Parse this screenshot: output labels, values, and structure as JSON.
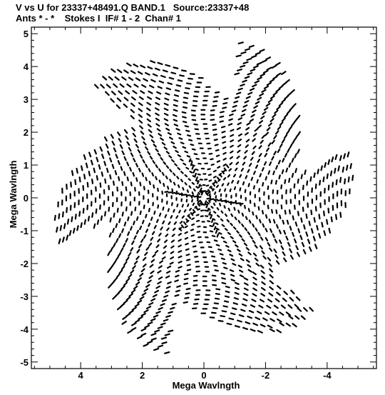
{
  "chart_data": {
    "type": "scatter",
    "title_line1": "V vs U for 23337+48491.Q BAND.1   Source:23337+48",
    "title_line2": "Ants * - *    Stokes I  IF# 1 - 2  Chan# 1",
    "xlabel": "Mega Wavlngth",
    "ylabel": "Mega Wavlngth",
    "xlim": [
      5.6,
      -5.6
    ],
    "ylim": [
      -5.2,
      5.2
    ],
    "x_ticks": [
      4,
      2,
      0,
      -2,
      -4
    ],
    "x_tick_labels": [
      "4",
      "2",
      "0",
      "-2",
      "-4"
    ],
    "y_ticks": [
      5,
      4,
      3,
      2,
      1,
      0,
      -1,
      -2,
      -3,
      -4,
      -5
    ],
    "y_tick_labels": [
      "5",
      "4",
      "3",
      "2",
      "1",
      "0",
      "-1",
      "-2",
      "-3",
      "-4",
      "-5"
    ],
    "point_color": "#000000",
    "uv_coverage": {
      "description_of_pattern": "Radial uv-track coverage, symmetric arcs forming a six-armed star out to about 5 Mega Wavlngth",
      "arms": 6,
      "max_radius": 5.0,
      "ring_count": 34
    }
  }
}
